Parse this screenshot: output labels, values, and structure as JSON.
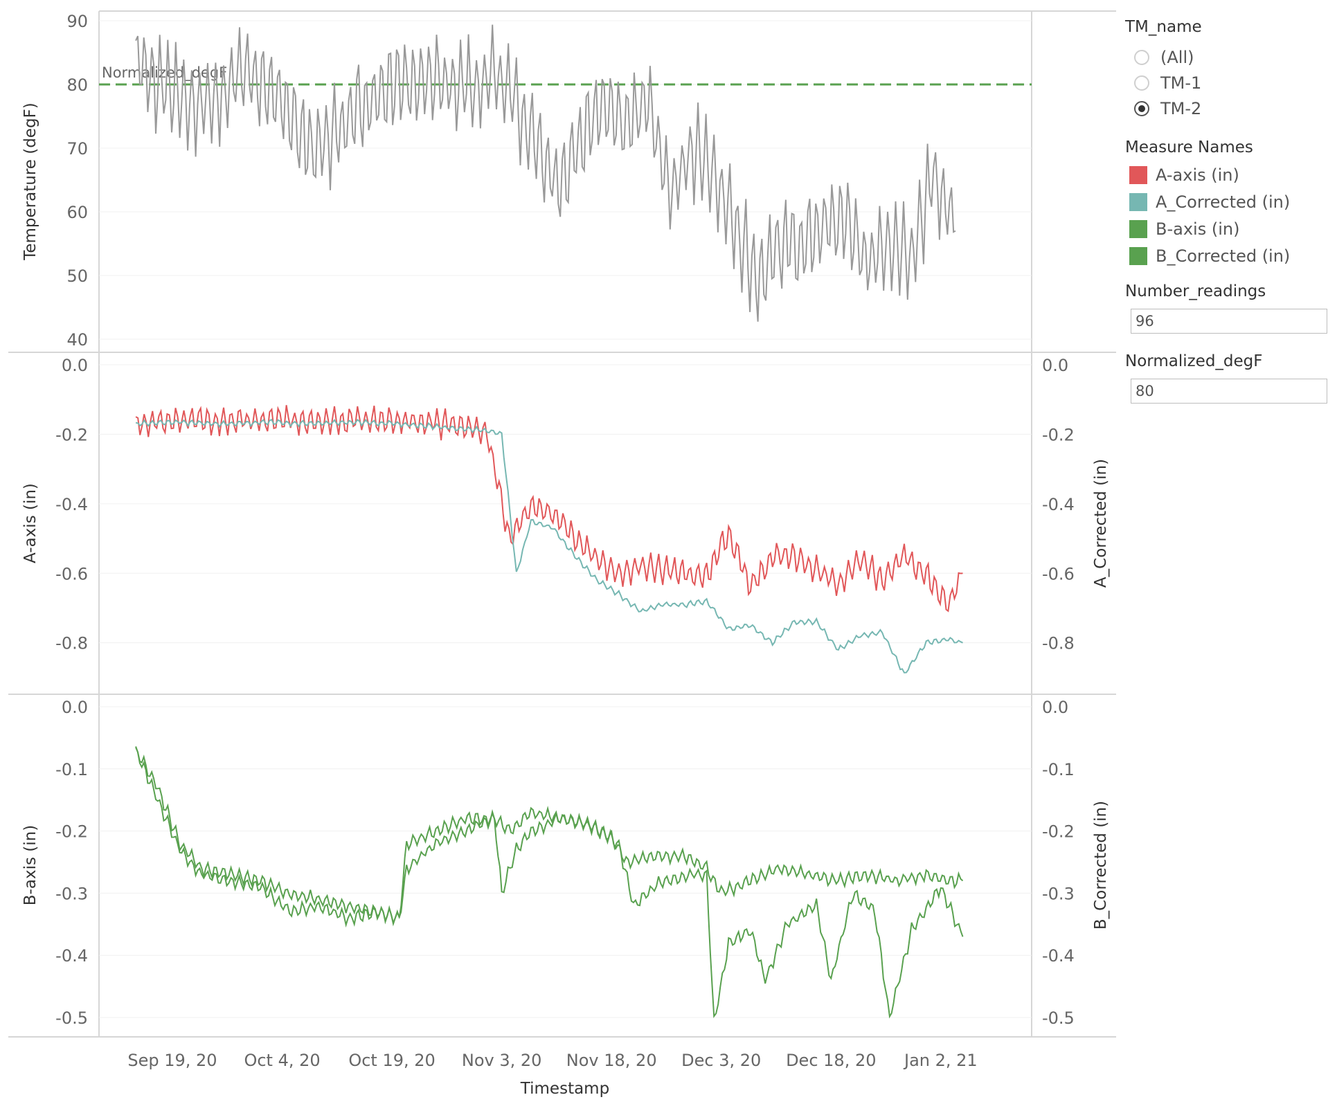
{
  "sidebar": {
    "tm_name": {
      "title": "TM_name",
      "options": [
        "(All)",
        "TM-1",
        "TM-2"
      ],
      "selected": "TM-2"
    },
    "measure_names": {
      "title": "Measure Names",
      "items": [
        {
          "label": "A-axis (in)",
          "color": "#e15759"
        },
        {
          "label": "A_Corrected (in)",
          "color": "#76b7b2"
        },
        {
          "label": "B-axis (in)",
          "color": "#59a14f"
        },
        {
          "label": "B_Corrected (in)",
          "color": "#59a14f"
        }
      ]
    },
    "number_readings": {
      "title": "Number_readings",
      "value": "96"
    },
    "normalized_degf": {
      "title": "Normalized_degF",
      "value": "80"
    }
  },
  "chart_data": [
    {
      "type": "line",
      "ylabel": "Temperature (degF)",
      "ylim": [
        40,
        90
      ],
      "yticks": [
        "90",
        "80",
        "70",
        "60",
        "50",
        "40"
      ],
      "reference_line": {
        "label": "Normalized_degF",
        "value": 80,
        "color": "#59a14f",
        "style": "dashed"
      },
      "series": [
        {
          "color": "#999999",
          "x": [
            "2020-09-14",
            "2020-09-17",
            "2020-09-20",
            "2020-09-23",
            "2020-09-26",
            "2020-09-29",
            "2020-10-02",
            "2020-10-05",
            "2020-10-08",
            "2020-10-12",
            "2020-10-15",
            "2020-10-18",
            "2020-10-21",
            "2020-10-24",
            "2020-10-27",
            "2020-10-30",
            "2020-11-02",
            "2020-11-05",
            "2020-11-08",
            "2020-11-11",
            "2020-11-14",
            "2020-11-17",
            "2020-11-20",
            "2020-11-23",
            "2020-11-26",
            "2020-11-29",
            "2020-12-02",
            "2020-12-05",
            "2020-12-08",
            "2020-12-11",
            "2020-12-14",
            "2020-12-17",
            "2020-12-20",
            "2020-12-23",
            "2020-12-26",
            "2020-12-29",
            "2021-01-01",
            "2021-01-04"
          ],
          "values": [
            84,
            80,
            78,
            77,
            79,
            82,
            80,
            76,
            70,
            73,
            77,
            79,
            80,
            81,
            80,
            79,
            82,
            77,
            70,
            63,
            72,
            76,
            74,
            77,
            63,
            70,
            66,
            58,
            49,
            55,
            55,
            58,
            59,
            52,
            55,
            53,
            66,
            57
          ]
        }
      ]
    },
    {
      "type": "line",
      "ylabel": "A-axis (in)",
      "ylabel_right": "A_Corrected (in)",
      "ylim": [
        -0.95,
        0.0
      ],
      "yticks": [
        "0.0",
        "-0.2",
        "-0.4",
        "-0.6",
        "-0.8"
      ],
      "series": [
        {
          "color": "#e15759",
          "x": [
            "2020-09-14",
            "2020-09-20",
            "2020-09-26",
            "2020-10-02",
            "2020-10-08",
            "2020-10-14",
            "2020-10-20",
            "2020-10-26",
            "2020-11-01",
            "2020-11-04",
            "2020-11-07",
            "2020-11-10",
            "2020-11-13",
            "2020-11-16",
            "2020-11-19",
            "2020-11-22",
            "2020-11-25",
            "2020-11-28",
            "2020-12-01",
            "2020-12-04",
            "2020-12-07",
            "2020-12-10",
            "2020-12-13",
            "2020-12-16",
            "2020-12-19",
            "2020-12-22",
            "2020-12-25",
            "2020-12-28",
            "2020-12-31",
            "2021-01-03",
            "2021-01-05"
          ],
          "values": [
            -0.17,
            -0.16,
            -0.16,
            -0.16,
            -0.16,
            -0.16,
            -0.16,
            -0.17,
            -0.19,
            -0.5,
            -0.41,
            -0.43,
            -0.5,
            -0.56,
            -0.6,
            -0.58,
            -0.59,
            -0.6,
            -0.61,
            -0.48,
            -0.64,
            -0.55,
            -0.55,
            -0.59,
            -0.63,
            -0.56,
            -0.62,
            -0.55,
            -0.6,
            -0.69,
            -0.6
          ]
        },
        {
          "color": "#76b7b2",
          "x": [
            "2020-09-14",
            "2020-09-20",
            "2020-09-26",
            "2020-10-02",
            "2020-10-08",
            "2020-10-14",
            "2020-10-20",
            "2020-10-26",
            "2020-11-01",
            "2020-11-03",
            "2020-11-05",
            "2020-11-07",
            "2020-11-10",
            "2020-11-13",
            "2020-11-16",
            "2020-11-19",
            "2020-11-22",
            "2020-11-25",
            "2020-11-28",
            "2020-12-01",
            "2020-12-04",
            "2020-12-07",
            "2020-12-10",
            "2020-12-13",
            "2020-12-16",
            "2020-12-19",
            "2020-12-22",
            "2020-12-25",
            "2020-12-28",
            "2020-12-31",
            "2021-01-03",
            "2021-01-05"
          ],
          "values": [
            -0.17,
            -0.165,
            -0.17,
            -0.165,
            -0.17,
            -0.165,
            -0.17,
            -0.18,
            -0.19,
            -0.2,
            -0.6,
            -0.45,
            -0.47,
            -0.55,
            -0.62,
            -0.66,
            -0.71,
            -0.69,
            -0.69,
            -0.68,
            -0.76,
            -0.75,
            -0.8,
            -0.74,
            -0.74,
            -0.82,
            -0.78,
            -0.77,
            -0.89,
            -0.8,
            -0.79,
            -0.8
          ]
        }
      ]
    },
    {
      "type": "line",
      "ylabel": "B-axis (in)",
      "ylabel_right": "B_Corrected (in)",
      "ylim": [
        -0.53,
        0.0
      ],
      "yticks": [
        "0.0",
        "-0.1",
        "-0.2",
        "-0.3",
        "-0.4",
        "-0.5"
      ],
      "series": [
        {
          "color": "#59a14f",
          "x": [
            "2020-09-14",
            "2020-09-17",
            "2020-09-20",
            "2020-09-23",
            "2020-09-27",
            "2020-10-01",
            "2020-10-05",
            "2020-10-09",
            "2020-10-13",
            "2020-10-17",
            "2020-10-20",
            "2020-10-21",
            "2020-10-25",
            "2020-10-29",
            "2020-11-02",
            "2020-11-04",
            "2020-11-07",
            "2020-11-11",
            "2020-11-15",
            "2020-11-18",
            "2020-11-20",
            "2020-11-24",
            "2020-11-28",
            "2020-12-01",
            "2020-12-03",
            "2020-12-07",
            "2020-12-11",
            "2020-12-15",
            "2020-12-19",
            "2020-12-23",
            "2020-12-27",
            "2020-12-31",
            "2021-01-03",
            "2021-01-05"
          ],
          "values": [
            -0.07,
            -0.13,
            -0.22,
            -0.26,
            -0.27,
            -0.28,
            -0.3,
            -0.31,
            -0.32,
            -0.33,
            -0.34,
            -0.22,
            -0.2,
            -0.18,
            -0.18,
            -0.2,
            -0.17,
            -0.18,
            -0.19,
            -0.21,
            -0.25,
            -0.24,
            -0.24,
            -0.26,
            -0.3,
            -0.28,
            -0.26,
            -0.27,
            -0.28,
            -0.27,
            -0.28,
            -0.27,
            -0.28,
            -0.28
          ]
        },
        {
          "color": "#59a14f",
          "x": [
            "2020-09-14",
            "2020-09-17",
            "2020-09-20",
            "2020-09-23",
            "2020-09-27",
            "2020-10-01",
            "2020-10-05",
            "2020-10-09",
            "2020-10-13",
            "2020-10-17",
            "2020-10-20",
            "2020-10-21",
            "2020-10-25",
            "2020-10-29",
            "2020-11-02",
            "2020-11-03",
            "2020-11-05",
            "2020-11-07",
            "2020-11-11",
            "2020-11-15",
            "2020-11-19",
            "2020-11-21",
            "2020-11-25",
            "2020-11-29",
            "2020-12-01",
            "2020-12-02",
            "2020-12-04",
            "2020-12-07",
            "2020-12-09",
            "2020-12-12",
            "2020-12-16",
            "2020-12-18",
            "2020-12-21",
            "2020-12-24",
            "2020-12-26",
            "2020-12-29",
            "2021-01-02",
            "2021-01-05"
          ],
          "values": [
            -0.07,
            -0.15,
            -0.23,
            -0.27,
            -0.28,
            -0.29,
            -0.33,
            -0.32,
            -0.34,
            -0.33,
            -0.34,
            -0.26,
            -0.22,
            -0.2,
            -0.18,
            -0.3,
            -0.23,
            -0.2,
            -0.18,
            -0.19,
            -0.22,
            -0.32,
            -0.28,
            -0.27,
            -0.27,
            -0.51,
            -0.38,
            -0.36,
            -0.44,
            -0.35,
            -0.32,
            -0.44,
            -0.3,
            -0.33,
            -0.5,
            -0.36,
            -0.29,
            -0.37
          ]
        }
      ]
    }
  ],
  "x_axis": {
    "title": "Timestamp",
    "ticks": [
      {
        "label": "Sep 19, 20",
        "date": "2020-09-19"
      },
      {
        "label": "Oct 4, 20",
        "date": "2020-10-04"
      },
      {
        "label": "Oct 19, 20",
        "date": "2020-10-19"
      },
      {
        "label": "Nov 3, 20",
        "date": "2020-11-03"
      },
      {
        "label": "Nov 18, 20",
        "date": "2020-11-18"
      },
      {
        "label": "Dec 3, 20",
        "date": "2020-12-03"
      },
      {
        "label": "Dec 18, 20",
        "date": "2020-12-18"
      },
      {
        "label": "Jan 2, 21",
        "date": "2021-01-02"
      }
    ]
  }
}
